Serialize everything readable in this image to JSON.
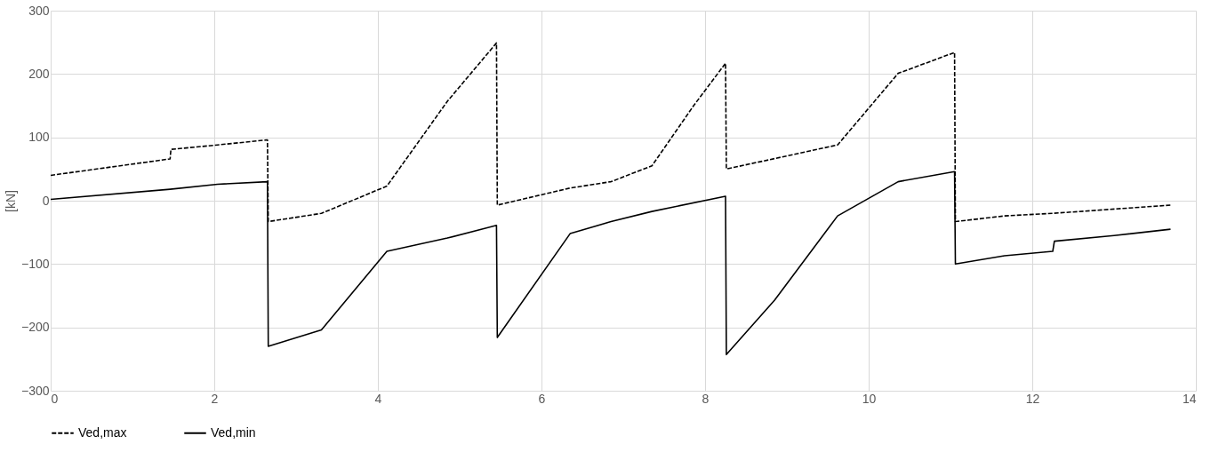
{
  "chart_data": {
    "type": "line",
    "ylabel": "[kN]",
    "xlim": [
      0,
      14
    ],
    "xticks": [
      0,
      2,
      4,
      6,
      8,
      10,
      12,
      14
    ],
    "ylim": [
      -300,
      300
    ],
    "yticks": [
      -300,
      -200,
      -100,
      0,
      100,
      200,
      300
    ],
    "grid": true,
    "legend": "bottom",
    "marker": "none",
    "series": [
      {
        "name": "Ved,max",
        "color": "#000000",
        "line_style": "dashed",
        "x": [
          0,
          1.46,
          1.47,
          2.04,
          2.65,
          2.66,
          3.31,
          4.11,
          4.85,
          5.45,
          5.46,
          6.35,
          6.85,
          7.35,
          7.86,
          8.25,
          8.26,
          9.62,
          10.36,
          11.05,
          11.06,
          11.66,
          12.25,
          13.69
        ],
        "values": [
          40,
          66,
          81,
          88,
          96,
          -33,
          -20,
          23,
          157,
          249,
          -7,
          20,
          30,
          55,
          150,
          217,
          50,
          88,
          201,
          234,
          -33,
          -24,
          -20,
          -7
        ]
      },
      {
        "name": "Ved,min",
        "color": "#000000",
        "line_style": "solid",
        "x": [
          0,
          1.46,
          2.04,
          2.65,
          2.66,
          3.31,
          4.11,
          4.85,
          5.45,
          5.46,
          6.35,
          6.85,
          7.35,
          8.25,
          8.26,
          8.85,
          9.62,
          10.36,
          11.05,
          11.06,
          11.66,
          12.25,
          12.27,
          13.0,
          13.69
        ],
        "values": [
          2,
          18,
          26,
          30,
          -230,
          -204,
          -80,
          -59,
          -39,
          -216,
          -52,
          -33,
          -17,
          7,
          -243,
          -157,
          -24,
          30,
          46,
          -100,
          -87,
          -80,
          -64,
          -55,
          -45
        ]
      }
    ]
  }
}
